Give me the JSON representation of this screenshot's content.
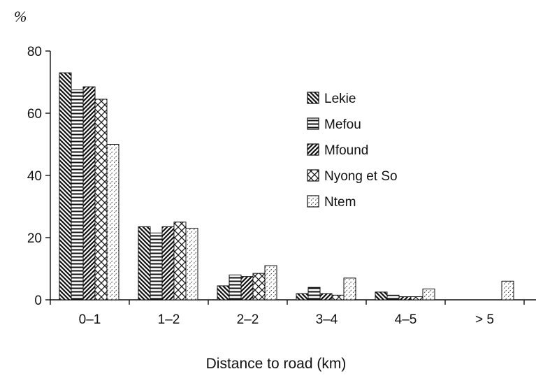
{
  "chart_data": {
    "type": "bar",
    "title": "",
    "unit_label": "%",
    "xlabel": "Distance to road (km)",
    "ylabel": "",
    "ylim": [
      0,
      80
    ],
    "yticks": [
      "0",
      "20",
      "40",
      "60",
      "80"
    ],
    "grid": false,
    "legend_position": "right",
    "categories": [
      "0–1",
      "1–2",
      "2–2",
      "3–4",
      "4–5",
      "> 5"
    ],
    "series": [
      {
        "name": "Lekie",
        "pattern": "diag-back",
        "values": [
          73,
          23.5,
          4.5,
          2,
          2.5,
          0
        ]
      },
      {
        "name": "Mefou",
        "pattern": "horizontal",
        "values": [
          67.5,
          21.5,
          8,
          4,
          1.5,
          0
        ]
      },
      {
        "name": "Mfound",
        "pattern": "diag-forward",
        "values": [
          68.5,
          23.5,
          7.5,
          2,
          1,
          0
        ]
      },
      {
        "name": "Nyong et So",
        "pattern": "cross",
        "values": [
          64.5,
          25,
          8.5,
          1.5,
          1,
          0
        ]
      },
      {
        "name": "Ntem",
        "pattern": "dots",
        "values": [
          50,
          23,
          11,
          7,
          3.5,
          6
        ]
      }
    ]
  }
}
